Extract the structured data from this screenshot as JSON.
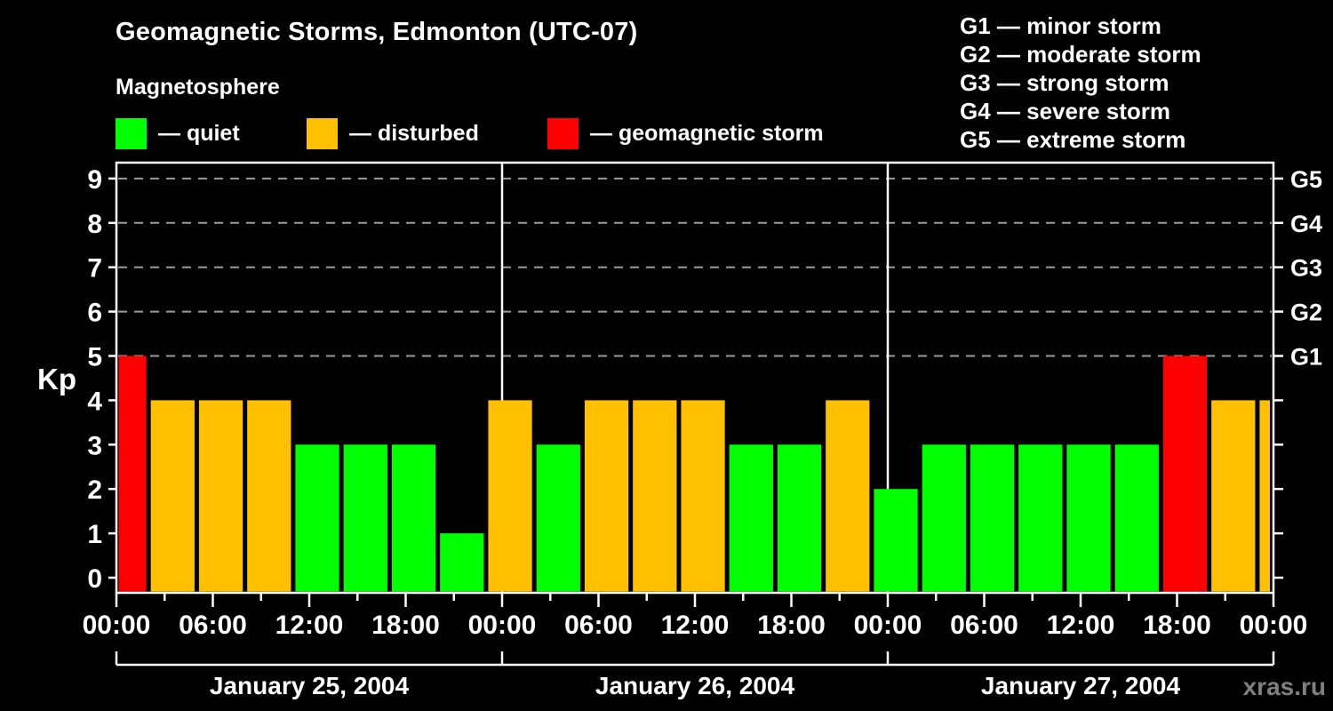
{
  "header": {
    "title": "Geomagnetic Storms, Edmonton (UTC-07)",
    "subtitle": "Magnetosphere"
  },
  "legend": {
    "items": [
      {
        "name": "quiet",
        "label": "— quiet",
        "color": "#00ff00"
      },
      {
        "name": "disturbed",
        "label": "— disturbed",
        "color": "#ffc000"
      },
      {
        "name": "storm",
        "label": "— geomagnetic storm",
        "color": "#ff0000"
      }
    ]
  },
  "storm_scale_legend": {
    "items": [
      {
        "label": "G1 — minor storm"
      },
      {
        "label": "G2 — moderate storm"
      },
      {
        "label": "G3 — strong storm"
      },
      {
        "label": "G4 — severe storm"
      },
      {
        "label": "G5 — extreme storm"
      }
    ]
  },
  "watermark": "xras.ru",
  "chart_data": {
    "type": "bar",
    "title": "Geomagnetic Storms, Edmonton (UTC-07)",
    "subtitle": "Magnetosphere",
    "ylabel": "Kp",
    "ylim": [
      0,
      9
    ],
    "y_ticks": [
      0,
      1,
      2,
      3,
      4,
      5,
      6,
      7,
      8,
      9
    ],
    "right_axis_ticks": [
      {
        "kp": 5,
        "label": "G1"
      },
      {
        "kp": 6,
        "label": "G2"
      },
      {
        "kp": 7,
        "label": "G3"
      },
      {
        "kp": 8,
        "label": "G4"
      },
      {
        "kp": 9,
        "label": "G5"
      }
    ],
    "gridlines_at_kp": [
      5,
      6,
      7,
      8,
      9
    ],
    "grid": "dashed-horizontal",
    "x_total_hours": 72,
    "x_major_tick_hours": 6,
    "x_minor_tick_hours": 3,
    "x_tick_labels": [
      "00:00",
      "06:00",
      "12:00",
      "18:00",
      "00:00",
      "06:00",
      "12:00",
      "18:00",
      "00:00",
      "06:00",
      "12:00",
      "18:00",
      "00:00"
    ],
    "day_separator_hours": [
      24,
      48
    ],
    "days": [
      {
        "label": "January 25, 2004",
        "start_hour": 0,
        "end_hour": 24
      },
      {
        "label": "January 26, 2004",
        "start_hour": 24,
        "end_hour": 48
      },
      {
        "label": "January 27, 2004",
        "start_hour": 48,
        "end_hour": 72
      }
    ],
    "category_colors": {
      "quiet": "#00ff00",
      "disturbed": "#ffc000",
      "storm": "#ff0000"
    },
    "bars": [
      {
        "start_hour": 0,
        "end_hour": 2,
        "kp": 5,
        "category": "storm"
      },
      {
        "start_hour": 2,
        "end_hour": 5,
        "kp": 4,
        "category": "disturbed"
      },
      {
        "start_hour": 5,
        "end_hour": 8,
        "kp": 4,
        "category": "disturbed"
      },
      {
        "start_hour": 8,
        "end_hour": 11,
        "kp": 4,
        "category": "disturbed"
      },
      {
        "start_hour": 11,
        "end_hour": 14,
        "kp": 3,
        "category": "quiet"
      },
      {
        "start_hour": 14,
        "end_hour": 17,
        "kp": 3,
        "category": "quiet"
      },
      {
        "start_hour": 17,
        "end_hour": 20,
        "kp": 3,
        "category": "quiet"
      },
      {
        "start_hour": 20,
        "end_hour": 23,
        "kp": 1,
        "category": "quiet"
      },
      {
        "start_hour": 23,
        "end_hour": 26,
        "kp": 4,
        "category": "disturbed"
      },
      {
        "start_hour": 26,
        "end_hour": 29,
        "kp": 3,
        "category": "quiet"
      },
      {
        "start_hour": 29,
        "end_hour": 32,
        "kp": 4,
        "category": "disturbed"
      },
      {
        "start_hour": 32,
        "end_hour": 35,
        "kp": 4,
        "category": "disturbed"
      },
      {
        "start_hour": 35,
        "end_hour": 38,
        "kp": 4,
        "category": "disturbed"
      },
      {
        "start_hour": 38,
        "end_hour": 41,
        "kp": 3,
        "category": "quiet"
      },
      {
        "start_hour": 41,
        "end_hour": 44,
        "kp": 3,
        "category": "quiet"
      },
      {
        "start_hour": 44,
        "end_hour": 47,
        "kp": 4,
        "category": "disturbed"
      },
      {
        "start_hour": 47,
        "end_hour": 50,
        "kp": 2,
        "category": "quiet"
      },
      {
        "start_hour": 50,
        "end_hour": 53,
        "kp": 3,
        "category": "quiet"
      },
      {
        "start_hour": 53,
        "end_hour": 56,
        "kp": 3,
        "category": "quiet"
      },
      {
        "start_hour": 56,
        "end_hour": 59,
        "kp": 3,
        "category": "quiet"
      },
      {
        "start_hour": 59,
        "end_hour": 62,
        "kp": 3,
        "category": "quiet"
      },
      {
        "start_hour": 62,
        "end_hour": 65,
        "kp": 3,
        "category": "quiet"
      },
      {
        "start_hour": 65,
        "end_hour": 68,
        "kp": 5,
        "category": "storm"
      },
      {
        "start_hour": 68,
        "end_hour": 71,
        "kp": 4,
        "category": "disturbed"
      },
      {
        "start_hour": 71,
        "end_hour": 72,
        "kp": 4,
        "category": "disturbed"
      }
    ]
  }
}
